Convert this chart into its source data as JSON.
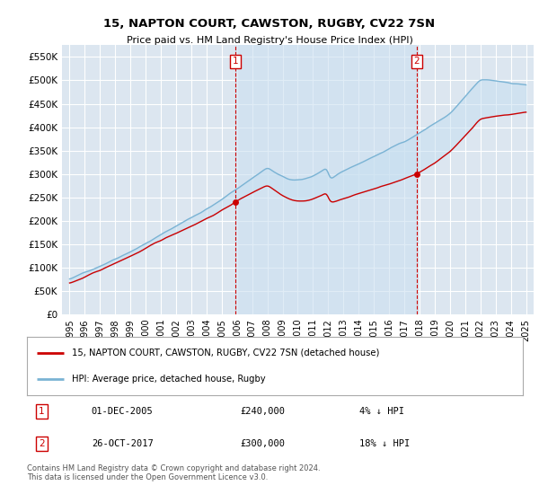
{
  "title": "15, NAPTON COURT, CAWSTON, RUGBY, CV22 7SN",
  "subtitle": "Price paid vs. HM Land Registry's House Price Index (HPI)",
  "ylabel_ticks": [
    "£0",
    "£50K",
    "£100K",
    "£150K",
    "£200K",
    "£250K",
    "£300K",
    "£350K",
    "£400K",
    "£450K",
    "£500K",
    "£550K"
  ],
  "ytick_values": [
    0,
    50000,
    100000,
    150000,
    200000,
    250000,
    300000,
    350000,
    400000,
    450000,
    500000,
    550000
  ],
  "ylim": [
    0,
    575000
  ],
  "plot_bg_color": "#dce6f0",
  "grid_color": "#ffffff",
  "hpi_color": "#7ab3d4",
  "hpi_fill_color": "#c5dff0",
  "price_color": "#cc0000",
  "marker_color": "#cc0000",
  "sale1_year": 2005.92,
  "sale1_price": 240000,
  "sale2_year": 2017.82,
  "sale2_price": 300000,
  "legend_line1": "15, NAPTON COURT, CAWSTON, RUGBY, CV22 7SN (detached house)",
  "legend_line2": "HPI: Average price, detached house, Rugby",
  "sale1_date": "01-DEC-2005",
  "sale2_date": "26-OCT-2017",
  "sale1_pct": "4% ↓ HPI",
  "sale2_pct": "18% ↓ HPI",
  "footnote": "Contains HM Land Registry data © Crown copyright and database right 2024.\nThis data is licensed under the Open Government Licence v3.0.",
  "xmin": 1994.5,
  "xmax": 2025.5
}
